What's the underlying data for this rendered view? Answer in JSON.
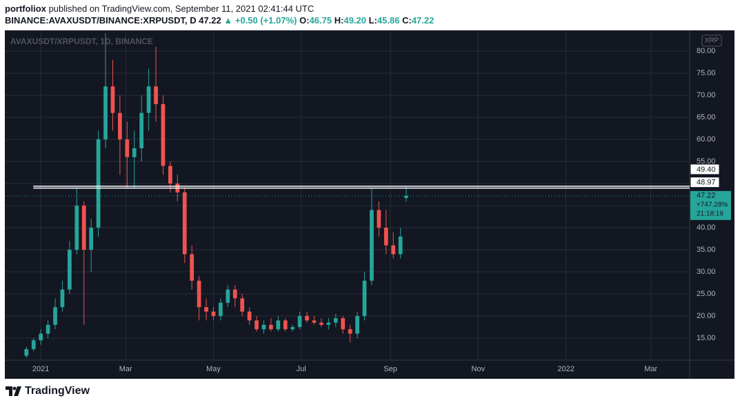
{
  "chart_data": {
    "type": "candlestick",
    "title": "portfoliox",
    "subtitle": "published on TradingView.com, September 11, 2021 02:41:44 UTC",
    "legend": {
      "symbol": "BINANCE:AVAXUSDT/BINANCE:XRPUSDT, D",
      "last": "47.22",
      "change": "▲ +0.50 (+1.07%)",
      "ohlc": [
        {
          "key": "O:",
          "value": "46.75"
        },
        {
          "key": "H:",
          "value": "49.20"
        },
        {
          "key": "L:",
          "value": "45.86"
        },
        {
          "key": "C:",
          "value": "47.22"
        }
      ]
    },
    "watermark": "AVAXUSDT/XRPUSDT, 1D, BINANCE",
    "currency": "XRP",
    "up_color": "#26a69a",
    "down_color": "#ef5350",
    "grid": true,
    "xlim": [
      -25,
      451
    ],
    "ylim": [
      10,
      84.7
    ],
    "xticks": [
      {
        "value": 0,
        "label": "2021"
      },
      {
        "value": 59,
        "label": "Mar"
      },
      {
        "value": 120,
        "label": "May"
      },
      {
        "value": 181,
        "label": "Jul"
      },
      {
        "value": 243,
        "label": "Sep"
      },
      {
        "value": 304,
        "label": "Nov"
      },
      {
        "value": 365,
        "label": "2022"
      },
      {
        "value": 424,
        "label": "Mar"
      }
    ],
    "yticks": [
      {
        "value": 15,
        "label": "15.00"
      },
      {
        "value": 20,
        "label": "20.00"
      },
      {
        "value": 25,
        "label": "25.00"
      },
      {
        "value": 30,
        "label": "30.00"
      },
      {
        "value": 35,
        "label": "35.00"
      },
      {
        "value": 40,
        "label": "40.00"
      },
      {
        "value": 45,
        "label": "45.00"
      },
      {
        "value": 50,
        "label": "50.00"
      },
      {
        "value": 55,
        "label": "55.00"
      },
      {
        "value": 60,
        "label": "60.00"
      },
      {
        "value": 65,
        "label": "65.00"
      },
      {
        "value": 70,
        "label": "70.00"
      },
      {
        "value": 75,
        "label": "75.00"
      },
      {
        "value": 80,
        "label": "80.00"
      }
    ],
    "x": [
      -10,
      -5,
      0,
      5,
      10,
      15,
      20,
      25,
      30,
      35,
      40,
      45,
      50,
      55,
      60,
      65,
      70,
      75,
      80,
      85,
      90,
      95,
      100,
      105,
      110,
      115,
      120,
      125,
      130,
      135,
      140,
      145,
      150,
      155,
      160,
      165,
      170,
      175,
      180,
      185,
      190,
      195,
      200,
      205,
      210,
      215,
      220,
      225,
      230,
      235,
      240,
      245,
      250,
      254
    ],
    "open": [
      11,
      12.5,
      14.5,
      16,
      18,
      22,
      26,
      35,
      45,
      35,
      40,
      60,
      72,
      66,
      60,
      56,
      58,
      66,
      72,
      68,
      54,
      50,
      48,
      34,
      28,
      22,
      21,
      20,
      23,
      26,
      24,
      21,
      19,
      17,
      18,
      17,
      19,
      17,
      17.5,
      20,
      19,
      18.5,
      18,
      18.5,
      19.5,
      17,
      16,
      20,
      28,
      44,
      40,
      36,
      34,
      46.75
    ],
    "high": [
      13,
      15,
      17,
      19,
      24,
      28,
      37,
      49,
      46,
      42,
      62,
      84,
      78,
      70,
      64,
      62,
      70,
      76,
      81,
      70,
      55,
      52,
      49,
      36,
      29,
      24,
      22,
      24,
      27,
      27,
      25,
      22,
      20,
      19,
      19.5,
      20,
      19.5,
      18,
      21,
      21,
      20,
      19.5,
      19.5,
      20.5,
      20,
      18,
      21,
      30,
      49,
      46,
      44,
      39,
      40,
      49.2
    ],
    "low": [
      10.5,
      12,
      13.5,
      15,
      17,
      21,
      25,
      34,
      18,
      30,
      38,
      58,
      62,
      52,
      49,
      49,
      55,
      62,
      64,
      52,
      48,
      46,
      32,
      26,
      19,
      19,
      19,
      19,
      22,
      22,
      20,
      18,
      16.5,
      16,
      16.5,
      16.5,
      16.5,
      16.5,
      17,
      18.5,
      18,
      17.5,
      17,
      17.5,
      16,
      14,
      15,
      19,
      27,
      38,
      34,
      33,
      33,
      45.86
    ],
    "close": [
      12.5,
      14.5,
      16,
      18,
      22,
      26,
      35,
      45,
      35,
      40,
      60,
      72,
      66,
      60,
      56,
      58,
      66,
      72,
      68,
      54,
      50,
      48,
      34,
      28,
      22,
      21,
      20,
      23,
      26,
      24,
      21,
      19,
      17,
      18,
      17,
      19,
      17,
      17.5,
      20,
      19,
      18.5,
      18,
      18.5,
      19.5,
      17,
      16,
      20,
      28,
      44,
      40,
      36,
      34,
      38,
      47.22
    ],
    "price_lines": [
      {
        "value": 49.4,
        "label": "49.40"
      },
      {
        "value": 48.97,
        "label": "48.97"
      }
    ],
    "last_price": {
      "value": 47.22,
      "label": "47.22",
      "change": "+747.28%",
      "countdown": "21:18:19"
    },
    "brand": "TradingView"
  }
}
